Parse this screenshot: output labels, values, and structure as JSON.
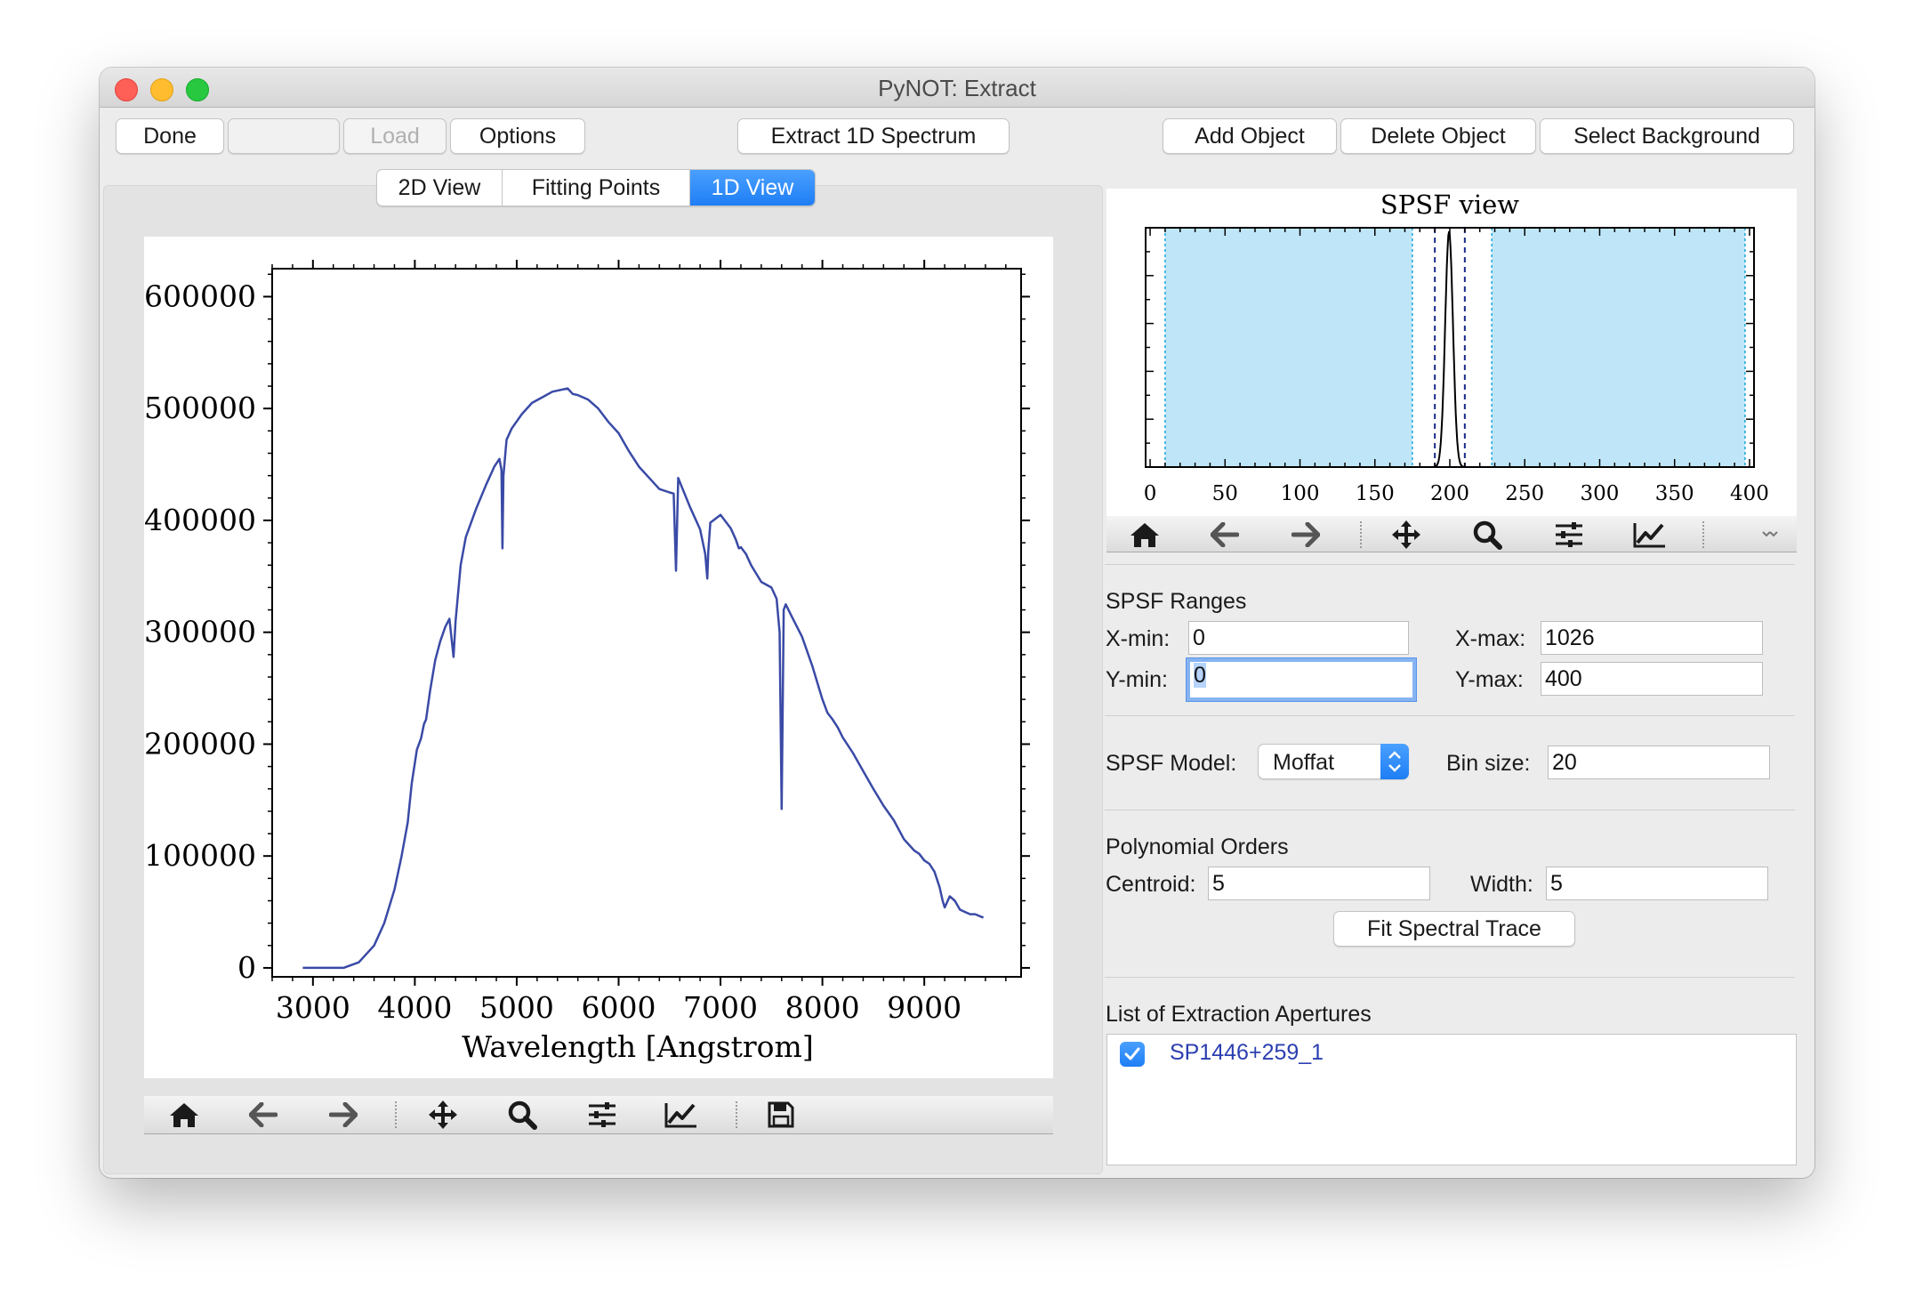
{
  "window": {
    "title": "PyNOT: Extract"
  },
  "toolbar": {
    "done_label": "Done",
    "blank_label": "",
    "load_label": "Load",
    "options_label": "Options",
    "extract_label": "Extract 1D Spectrum",
    "add_object_label": "Add Object",
    "delete_object_label": "Delete Object",
    "select_background_label": "Select Background"
  },
  "tabs": [
    {
      "label": "2D View",
      "active": false
    },
    {
      "label": "Fitting Points",
      "active": false
    },
    {
      "label": "1D View",
      "active": true
    }
  ],
  "colors": {
    "spectrum_line": "#3a4aa6",
    "bg_region_fill": "#bfe6f8",
    "bg_region_edge": "#1ca6d9",
    "aperture_edge": "#1a2a8c",
    "accent": "#1f7ef5"
  },
  "chart_data": [
    {
      "type": "line",
      "name": "spectrum-1d",
      "xlabel": "Wavelength  [Angstrom]",
      "ylabel": "",
      "title": "",
      "xlim": [
        2600,
        9950
      ],
      "ylim": [
        -8000,
        625000
      ],
      "xticks": [
        3000,
        4000,
        5000,
        6000,
        7000,
        8000,
        9000
      ],
      "yticks": [
        0,
        100000,
        200000,
        300000,
        400000,
        500000,
        600000
      ],
      "xtick_labels": [
        "3000",
        "4000",
        "5000",
        "6000",
        "7000",
        "8000",
        "9000"
      ],
      "ytick_labels": [
        "0",
        "100000",
        "200000",
        "300000",
        "400000",
        "500000",
        "600000"
      ],
      "x": [
        2900,
        3100,
        3300,
        3450,
        3600,
        3700,
        3800,
        3870,
        3930,
        3970,
        4020,
        4060,
        4090,
        4110,
        4150,
        4200,
        4250,
        4300,
        4340,
        4360,
        4380,
        4400,
        4450,
        4500,
        4600,
        4700,
        4780,
        4830,
        4850,
        4860,
        4870,
        4900,
        4950,
        5050,
        5150,
        5250,
        5350,
        5450,
        5500,
        5550,
        5600,
        5700,
        5800,
        5900,
        6000,
        6100,
        6200,
        6300,
        6400,
        6500,
        6540,
        6563,
        6585,
        6620,
        6700,
        6800,
        6850,
        6870,
        6880,
        6900,
        7000,
        7100,
        7150,
        7180,
        7200,
        7250,
        7300,
        7400,
        7500,
        7550,
        7580,
        7600,
        7620,
        7640,
        7700,
        7800,
        7900,
        8000,
        8050,
        8100,
        8150,
        8200,
        8300,
        8400,
        8500,
        8600,
        8700,
        8800,
        8900,
        8950,
        9000,
        9050,
        9100,
        9150,
        9180,
        9200,
        9250,
        9300,
        9350,
        9400,
        9450,
        9500,
        9550,
        9580
      ],
      "y": [
        0,
        0,
        0,
        5000,
        20000,
        40000,
        70000,
        100000,
        130000,
        165000,
        195000,
        205000,
        218000,
        222000,
        248000,
        275000,
        292000,
        305000,
        312000,
        295000,
        278000,
        310000,
        360000,
        385000,
        410000,
        432000,
        448000,
        455000,
        445000,
        375000,
        440000,
        472000,
        482000,
        495000,
        505000,
        510000,
        515000,
        517000,
        518000,
        513000,
        512000,
        508000,
        500000,
        488000,
        478000,
        462000,
        448000,
        438000,
        428000,
        425000,
        424000,
        355000,
        438000,
        430000,
        412000,
        392000,
        370000,
        348000,
        372000,
        398000,
        405000,
        393000,
        383000,
        375000,
        376000,
        370000,
        360000,
        345000,
        340000,
        330000,
        300000,
        142000,
        320000,
        325000,
        314000,
        296000,
        270000,
        240000,
        228000,
        222000,
        215000,
        206000,
        192000,
        176000,
        160000,
        145000,
        132000,
        115000,
        105000,
        102000,
        96000,
        93000,
        86000,
        72000,
        60000,
        54000,
        64000,
        60000,
        52000,
        50000,
        48000,
        48000,
        46000,
        45000
      ]
    },
    {
      "type": "line",
      "name": "spsf-view",
      "title": "SPSF view",
      "xlabel": "",
      "ylabel": "",
      "xlim": [
        -3,
        403
      ],
      "ylim": [
        0,
        1
      ],
      "xticks": [
        0,
        50,
        100,
        150,
        200,
        250,
        300,
        350,
        400
      ],
      "xtick_labels": [
        "0",
        "50",
        "100",
        "150",
        "200",
        "250",
        "300",
        "350",
        "400"
      ],
      "profile_center": 199.5,
      "profile_sigma": 2.6,
      "profile_peak": 0.985,
      "background_regions": [
        [
          10,
          175
        ],
        [
          228,
          397
        ]
      ],
      "aperture_lines": [
        190,
        210
      ]
    }
  ],
  "nav_icons": {
    "home": "home-icon",
    "back": "back-arrow-icon",
    "forward": "forward-arrow-icon",
    "pan": "pan-icon",
    "zoom": "zoom-icon",
    "configure": "sliders-icon",
    "edit": "chart-edit-icon",
    "save": "save-icon"
  },
  "spsf_ranges": {
    "heading": "SPSF Ranges",
    "xmin_label": "X-min:",
    "xmin_value": "0",
    "xmax_label": "X-max:",
    "xmax_value": "1026",
    "ymin_label": "Y-min:",
    "ymin_value": "0",
    "ymax_label": "Y-max:",
    "ymax_value": "400"
  },
  "spsf_model": {
    "label": "SPSF Model:",
    "selected": "Moffat",
    "bin_label": "Bin size:",
    "bin_value": "20"
  },
  "poly_orders": {
    "heading": "Polynomial Orders",
    "centroid_label": "Centroid:",
    "centroid_value": "5",
    "width_label": "Width:",
    "width_value": "5",
    "fit_button_label": "Fit Spectral Trace"
  },
  "apertures": {
    "heading": "List of Extraction Apertures",
    "items": [
      {
        "name": "SP1446+259_1",
        "checked": true
      }
    ]
  }
}
